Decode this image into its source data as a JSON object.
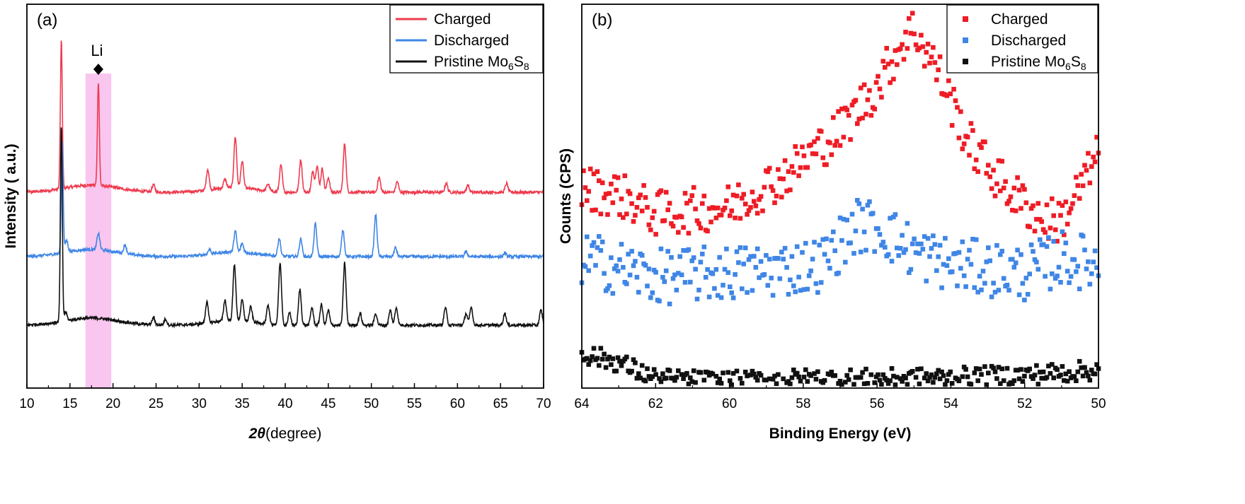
{
  "chart_data": [
    {
      "type": "line",
      "panel_label": "(a)",
      "xlabel_symbol": "2θ",
      "xlabel_unit": "(degree)",
      "ylabel": "Intensity ( a.u.)",
      "xlim": [
        10,
        70
      ],
      "xticks": [
        "10",
        "15",
        "20",
        "25",
        "30",
        "35",
        "40",
        "45",
        "50",
        "55",
        "60",
        "65",
        "70"
      ],
      "yticks": "none",
      "grid": false,
      "legend_position": "top-right",
      "annotation": {
        "text": "Li",
        "marker": "diamond",
        "x": 18.3,
        "highlight_range": [
          16.8,
          19.8
        ],
        "highlight_color": "#f9c6ef"
      },
      "series": [
        {
          "name": "Charged",
          "color": "#ee3b4f",
          "offset": 2.0,
          "peaks": [
            [
              14.0,
              2.5
            ],
            [
              18.3,
              1.75
            ],
            [
              24.7,
              0.12
            ],
            [
              31.0,
              0.35
            ],
            [
              33.0,
              0.15
            ],
            [
              34.2,
              0.85
            ],
            [
              35.0,
              0.45
            ],
            [
              38.0,
              0.12
            ],
            [
              39.5,
              0.45
            ],
            [
              41.8,
              0.55
            ],
            [
              43.2,
              0.35
            ],
            [
              43.7,
              0.45
            ],
            [
              44.3,
              0.4
            ],
            [
              45.0,
              0.25
            ],
            [
              46.9,
              0.82
            ],
            [
              50.9,
              0.25
            ],
            [
              53.0,
              0.18
            ],
            [
              58.7,
              0.15
            ],
            [
              61.2,
              0.12
            ],
            [
              65.7,
              0.15
            ]
          ]
        },
        {
          "name": "Discharged",
          "color": "#3f86e6",
          "offset": 1.0,
          "peaks": [
            [
              14.1,
              1.9
            ],
            [
              14.6,
              0.2
            ],
            [
              18.3,
              0.28
            ],
            [
              21.4,
              0.15
            ],
            [
              31.2,
              0.08
            ],
            [
              34.2,
              0.35
            ],
            [
              35.0,
              0.15
            ],
            [
              39.3,
              0.3
            ],
            [
              41.8,
              0.3
            ],
            [
              43.5,
              0.55
            ],
            [
              46.7,
              0.45
            ],
            [
              50.5,
              0.7
            ],
            [
              52.8,
              0.15
            ],
            [
              61.0,
              0.08
            ],
            [
              65.5,
              0.06
            ]
          ]
        },
        {
          "name": "Pristine Mo6S8",
          "name_parts": {
            "base": "Pristine Mo",
            "sub1": "6",
            "mid": "S",
            "sub2": "8"
          },
          "color": "#111111",
          "offset": 0.0,
          "peaks": [
            [
              14.0,
              3.3
            ],
            [
              14.5,
              0.15
            ],
            [
              24.7,
              0.12
            ],
            [
              26.1,
              0.1
            ],
            [
              30.9,
              0.35
            ],
            [
              33.0,
              0.35
            ],
            [
              34.1,
              0.95
            ],
            [
              35.0,
              0.35
            ],
            [
              36.0,
              0.25
            ],
            [
              38.0,
              0.3
            ],
            [
              39.4,
              1.05
            ],
            [
              40.5,
              0.2
            ],
            [
              41.7,
              0.6
            ],
            [
              43.1,
              0.3
            ],
            [
              44.2,
              0.35
            ],
            [
              45.0,
              0.25
            ],
            [
              46.9,
              1.05
            ],
            [
              48.7,
              0.2
            ],
            [
              50.5,
              0.2
            ],
            [
              52.2,
              0.25
            ],
            [
              52.9,
              0.3
            ],
            [
              58.6,
              0.3
            ],
            [
              61.0,
              0.2
            ],
            [
              61.6,
              0.3
            ],
            [
              65.5,
              0.2
            ],
            [
              69.7,
              0.25
            ]
          ]
        }
      ]
    },
    {
      "type": "scatter",
      "panel_label": "(b)",
      "xlabel": "Binding Energy (eV)",
      "ylabel": "Counts (CPS)",
      "xlim": [
        64,
        50
      ],
      "x_reversed": true,
      "xticks": [
        "64",
        "62",
        "60",
        "58",
        "56",
        "54",
        "52",
        "50"
      ],
      "yticks": "none",
      "grid": false,
      "legend_position": "top-right",
      "series": [
        {
          "name": "Charged",
          "color": "#ee1c25",
          "marker": "square",
          "profile": [
            [
              64,
              1.55
            ],
            [
              63,
              1.5
            ],
            [
              62,
              1.35
            ],
            [
              60,
              1.4
            ],
            [
              58.5,
              1.65
            ],
            [
              57,
              2.0
            ],
            [
              56,
              2.35
            ],
            [
              55.2,
              2.75
            ],
            [
              55.0,
              2.8
            ],
            [
              54.4,
              2.5
            ],
            [
              53.5,
              1.9
            ],
            [
              52.5,
              1.55
            ],
            [
              51.5,
              1.3
            ],
            [
              51.0,
              1.3
            ],
            [
              50.4,
              1.6
            ],
            [
              50,
              1.8
            ]
          ],
          "noise": 0.18
        },
        {
          "name": "Discharged",
          "color": "#3f86e6",
          "marker": "square",
          "profile": [
            [
              64,
              1.0
            ],
            [
              62,
              0.85
            ],
            [
              59,
              0.9
            ],
            [
              57.5,
              0.95
            ],
            [
              56.6,
              1.25
            ],
            [
              56.0,
              1.25
            ],
            [
              55.0,
              1.05
            ],
            [
              54,
              0.95
            ],
            [
              52,
              0.88
            ],
            [
              51,
              1.0
            ],
            [
              50,
              0.95
            ]
          ],
          "noise": 0.22
        },
        {
          "name": "Pristine Mo6S8",
          "name_parts": {
            "base": "Pristine Mo",
            "sub1": "6",
            "mid": "S",
            "sub2": "8"
          },
          "color": "#111111",
          "marker": "square",
          "profile": [
            [
              64,
              0.25
            ],
            [
              63,
              0.18
            ],
            [
              62,
              0.05
            ],
            [
              60,
              0.03
            ],
            [
              58,
              0.05
            ],
            [
              56,
              0.05
            ],
            [
              54,
              0.06
            ],
            [
              52,
              0.08
            ],
            [
              50,
              0.12
            ]
          ],
          "noise": 0.08
        }
      ]
    }
  ]
}
